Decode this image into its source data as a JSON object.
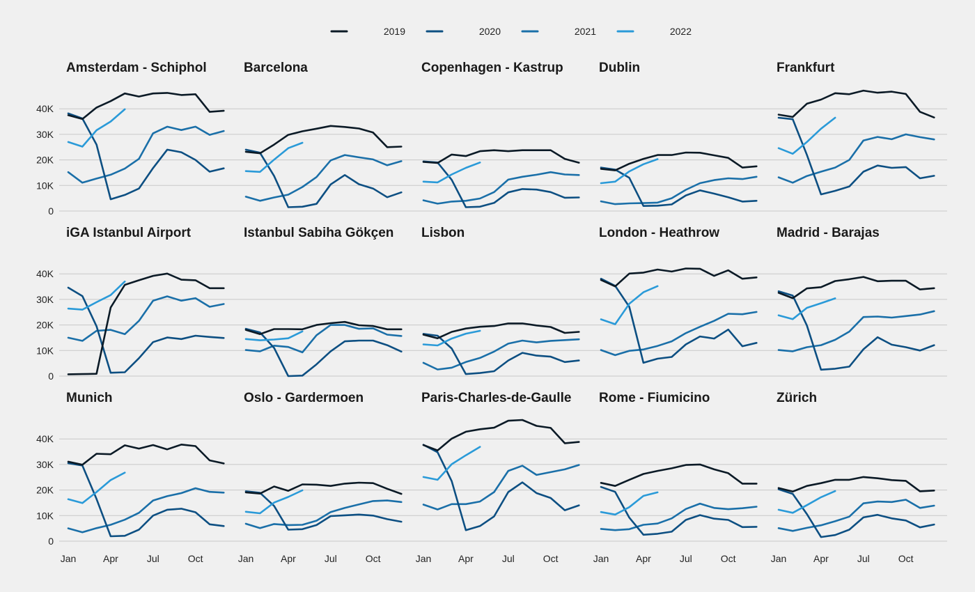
{
  "chart_data": {
    "type": "line",
    "months": [
      "Jan",
      "Feb",
      "Mar",
      "Apr",
      "May",
      "Jun",
      "Jul",
      "Aug",
      "Sep",
      "Oct",
      "Nov",
      "Dec"
    ],
    "x_ticks": [
      {
        "label": "Jan",
        "month": 1
      },
      {
        "label": "Apr",
        "month": 4
      },
      {
        "label": "Jul",
        "month": 7
      },
      {
        "label": "Oct",
        "month": 10
      }
    ],
    "y_ticks": [
      {
        "label": "0",
        "value": 0
      },
      {
        "label": "10K",
        "value": 10000
      },
      {
        "label": "20K",
        "value": 20000
      },
      {
        "label": "30K",
        "value": 30000
      },
      {
        "label": "40K",
        "value": 40000
      }
    ],
    "ylim": [
      0,
      48000
    ],
    "legend": [
      {
        "name": "2019",
        "color": "#0b1a26"
      },
      {
        "name": "2020",
        "color": "#0d4f82"
      },
      {
        "name": "2021",
        "color": "#1a6fa8"
      },
      {
        "name": "2022",
        "color": "#2a9ad8"
      }
    ],
    "panels": [
      {
        "title": "Amsterdam - Schiphol",
        "series": {
          "2019": [
            37500,
            36000,
            40500,
            43000,
            46000,
            44800,
            46000,
            46200,
            45400,
            45700,
            38800,
            39200
          ],
          "2020": [
            38200,
            36200,
            26000,
            4600,
            6300,
            8800,
            16800,
            24000,
            23000,
            20000,
            15400,
            16700
          ],
          "2021": [
            15200,
            11100,
            12700,
            14200,
            16600,
            20400,
            30400,
            33000,
            31700,
            33000,
            29800,
            31300
          ],
          "2022": [
            27000,
            25200,
            31600,
            35000,
            39800
          ]
        }
      },
      {
        "title": "Barcelona",
        "series": {
          "2019": [
            23200,
            22600,
            26000,
            29800,
            31200,
            32200,
            33300,
            32900,
            32300,
            30700,
            25000,
            25200
          ],
          "2020": [
            24000,
            22800,
            13700,
            1500,
            1700,
            2800,
            10400,
            14100,
            10500,
            8800,
            5400,
            7300
          ],
          "2021": [
            5600,
            4000,
            5300,
            6400,
            9400,
            13300,
            19800,
            21900,
            21000,
            20200,
            17900,
            19500
          ],
          "2022": [
            15600,
            15300,
            20100,
            24600,
            26700
          ]
        }
      },
      {
        "title": "Copenhagen - Kastrup",
        "series": {
          "2019": [
            19200,
            18800,
            22100,
            21500,
            23400,
            23800,
            23400,
            23800,
            23800,
            23800,
            20400,
            18900
          ],
          "2020": [
            19400,
            19000,
            12200,
            1500,
            1700,
            3200,
            7300,
            8600,
            8400,
            7400,
            5200,
            5300
          ],
          "2021": [
            4200,
            2900,
            3700,
            4000,
            4900,
            7400,
            12300,
            13400,
            14200,
            15200,
            14300,
            14100
          ],
          "2022": [
            11500,
            11200,
            14300,
            16900,
            19000
          ]
        }
      },
      {
        "title": "Dublin",
        "series": {
          "2019": [
            16500,
            15900,
            18500,
            20400,
            21900,
            21900,
            22900,
            22800,
            21800,
            20800,
            17000,
            17500
          ],
          "2020": [
            17000,
            16200,
            13000,
            2000,
            2100,
            2600,
            6100,
            8100,
            6800,
            5400,
            3700,
            4000
          ],
          "2021": [
            3800,
            2700,
            3000,
            3100,
            3300,
            5000,
            8300,
            10900,
            12100,
            12800,
            12500,
            13400
          ],
          "2022": [
            10900,
            11500,
            15500,
            18300,
            20300
          ]
        }
      },
      {
        "title": "Frankfurt",
        "series": {
          "2019": [
            37700,
            36800,
            42000,
            43600,
            46100,
            45700,
            47100,
            46300,
            46700,
            45800,
            38800,
            36600
          ],
          "2020": [
            36500,
            35900,
            22000,
            6500,
            7900,
            9600,
            15400,
            17800,
            16900,
            17200,
            12800,
            13800
          ],
          "2021": [
            13200,
            11100,
            13700,
            15400,
            17000,
            20000,
            27600,
            29000,
            28100,
            30000,
            28900,
            28000
          ],
          "2022": [
            24600,
            22400,
            27000,
            32200,
            36500
          ]
        }
      },
      {
        "title": "iGA Istanbul Airport",
        "series": {
          "2019": [
            700,
            800,
            900,
            26800,
            35700,
            37500,
            39200,
            40100,
            37700,
            37500,
            34400,
            34400
          ],
          "2020": [
            34600,
            31300,
            19500,
            1300,
            1500,
            7000,
            13300,
            15100,
            14500,
            15800,
            15300,
            14900
          ],
          "2021": [
            15000,
            13800,
            17700,
            18100,
            16400,
            21600,
            29500,
            31200,
            29500,
            30500,
            27100,
            28200
          ],
          "2022": [
            26400,
            26000,
            28900,
            31700,
            37000
          ]
        }
      },
      {
        "title": "Istanbul Sabiha Gökçen",
        "series": {
          "2019": [
            18100,
            16400,
            18400,
            18400,
            18300,
            20000,
            20700,
            21200,
            19900,
            19600,
            18300,
            18300
          ],
          "2020": [
            18500,
            17100,
            11000,
            0,
            200,
            4600,
            9700,
            13600,
            13900,
            13900,
            12100,
            9600
          ],
          "2021": [
            10200,
            9700,
            11900,
            11400,
            9300,
            16000,
            20000,
            20000,
            18500,
            18700,
            16200,
            15700
          ],
          "2022": [
            14500,
            14000,
            14300,
            14800,
            17500
          ]
        }
      },
      {
        "title": "Lisbon",
        "series": {
          "2019": [
            16200,
            14800,
            17300,
            18600,
            19300,
            19600,
            20600,
            20600,
            19800,
            19200,
            16900,
            17300
          ],
          "2020": [
            16500,
            15800,
            10800,
            800,
            1200,
            1900,
            6100,
            9100,
            8000,
            7600,
            5500,
            6100
          ],
          "2021": [
            5200,
            2600,
            3300,
            5500,
            7100,
            9600,
            12700,
            13900,
            13200,
            13800,
            14100,
            14400
          ],
          "2022": [
            12400,
            12000,
            14700,
            16600,
            17700
          ]
        }
      },
      {
        "title": "London - Heathrow",
        "series": {
          "2019": [
            37600,
            35100,
            40100,
            40500,
            41700,
            40900,
            42100,
            42000,
            39200,
            41400,
            38100,
            38600
          ],
          "2020": [
            38100,
            35300,
            27100,
            5200,
            6800,
            7500,
            12400,
            15500,
            14700,
            18200,
            11700,
            13000
          ],
          "2021": [
            10200,
            8200,
            9900,
            10400,
            11800,
            13600,
            16800,
            19300,
            21600,
            24400,
            24200,
            25100
          ],
          "2022": [
            22200,
            20300,
            28300,
            32800,
            35200
          ]
        }
      },
      {
        "title": "Madrid - Barajas",
        "series": {
          "2019": [
            32600,
            30500,
            34300,
            34800,
            37200,
            37900,
            38800,
            37100,
            37300,
            37300,
            33900,
            34400
          ],
          "2020": [
            33200,
            31500,
            19800,
            2500,
            2900,
            3700,
            10500,
            15200,
            12300,
            11300,
            10000,
            12100
          ],
          "2021": [
            10200,
            9700,
            11300,
            12100,
            14200,
            17400,
            23100,
            23300,
            22900,
            23500,
            24100,
            25400
          ],
          "2022": [
            23800,
            22300,
            26700,
            28500,
            30400
          ]
        }
      },
      {
        "title": "Munich",
        "series": {
          "2019": [
            31100,
            29900,
            34200,
            34000,
            37500,
            36200,
            37600,
            35900,
            37800,
            37200,
            31600,
            30400
          ],
          "2020": [
            30500,
            29600,
            16500,
            1900,
            2100,
            4500,
            10000,
            12300,
            12700,
            11300,
            6600,
            5900
          ],
          "2021": [
            5000,
            3500,
            5100,
            6400,
            8400,
            11100,
            15900,
            17600,
            18800,
            20700,
            19300,
            19000
          ],
          "2022": [
            16400,
            14900,
            19200,
            23900,
            26800
          ]
        }
      },
      {
        "title": "Oslo - Gardermoen",
        "series": {
          "2019": [
            19100,
            18600,
            21400,
            19700,
            22200,
            22100,
            21600,
            22500,
            22900,
            22700,
            20500,
            18500
          ],
          "2020": [
            19500,
            18900,
            13800,
            4500,
            4700,
            6300,
            9800,
            10100,
            10400,
            10000,
            8600,
            7600
          ],
          "2021": [
            6800,
            5100,
            6700,
            6300,
            6400,
            8000,
            11400,
            13000,
            14400,
            15700,
            15900,
            15300
          ],
          "2022": [
            11500,
            10900,
            15100,
            17300,
            19900
          ]
        }
      },
      {
        "title": "Paris-Charles-de-Gaulle",
        "series": {
          "2019": [
            37600,
            35500,
            40100,
            42800,
            43800,
            44400,
            47100,
            47400,
            45100,
            44300,
            38300,
            38800
          ],
          "2020": [
            37700,
            34800,
            23500,
            4300,
            5900,
            9700,
            19200,
            23000,
            18800,
            16900,
            12100,
            14000
          ],
          "2021": [
            14300,
            12400,
            14500,
            14500,
            15500,
            19200,
            27500,
            29500,
            25900,
            27000,
            28100,
            29800
          ],
          "2022": [
            25100,
            24000,
            30100,
            33600,
            36900
          ]
        }
      },
      {
        "title": "Rome - Fiumicino",
        "series": {
          "2019": [
            22800,
            21600,
            24000,
            26300,
            27500,
            28500,
            29800,
            30000,
            28100,
            26600,
            22500,
            22500
          ],
          "2020": [
            21200,
            19300,
            9200,
            2500,
            2900,
            3700,
            8300,
            10200,
            8800,
            8300,
            5500,
            5600
          ],
          "2021": [
            4800,
            4300,
            4700,
            6400,
            6900,
            8900,
            12600,
            14700,
            13000,
            12500,
            12900,
            13500
          ],
          "2022": [
            11400,
            10400,
            13300,
            17700,
            19100
          ]
        }
      },
      {
        "title": "Zürich",
        "series": {
          "2019": [
            20800,
            19400,
            21600,
            22700,
            24000,
            24000,
            25100,
            24600,
            23900,
            23600,
            19500,
            19800
          ],
          "2020": [
            20300,
            18500,
            10600,
            1600,
            2400,
            4500,
            9300,
            10300,
            8900,
            8100,
            5400,
            6500
          ],
          "2021": [
            5100,
            4000,
            5200,
            6200,
            7800,
            9600,
            14800,
            15500,
            15300,
            16200,
            13000,
            13900
          ],
          "2022": [
            12300,
            11100,
            14100,
            17200,
            19600
          ]
        }
      }
    ]
  }
}
